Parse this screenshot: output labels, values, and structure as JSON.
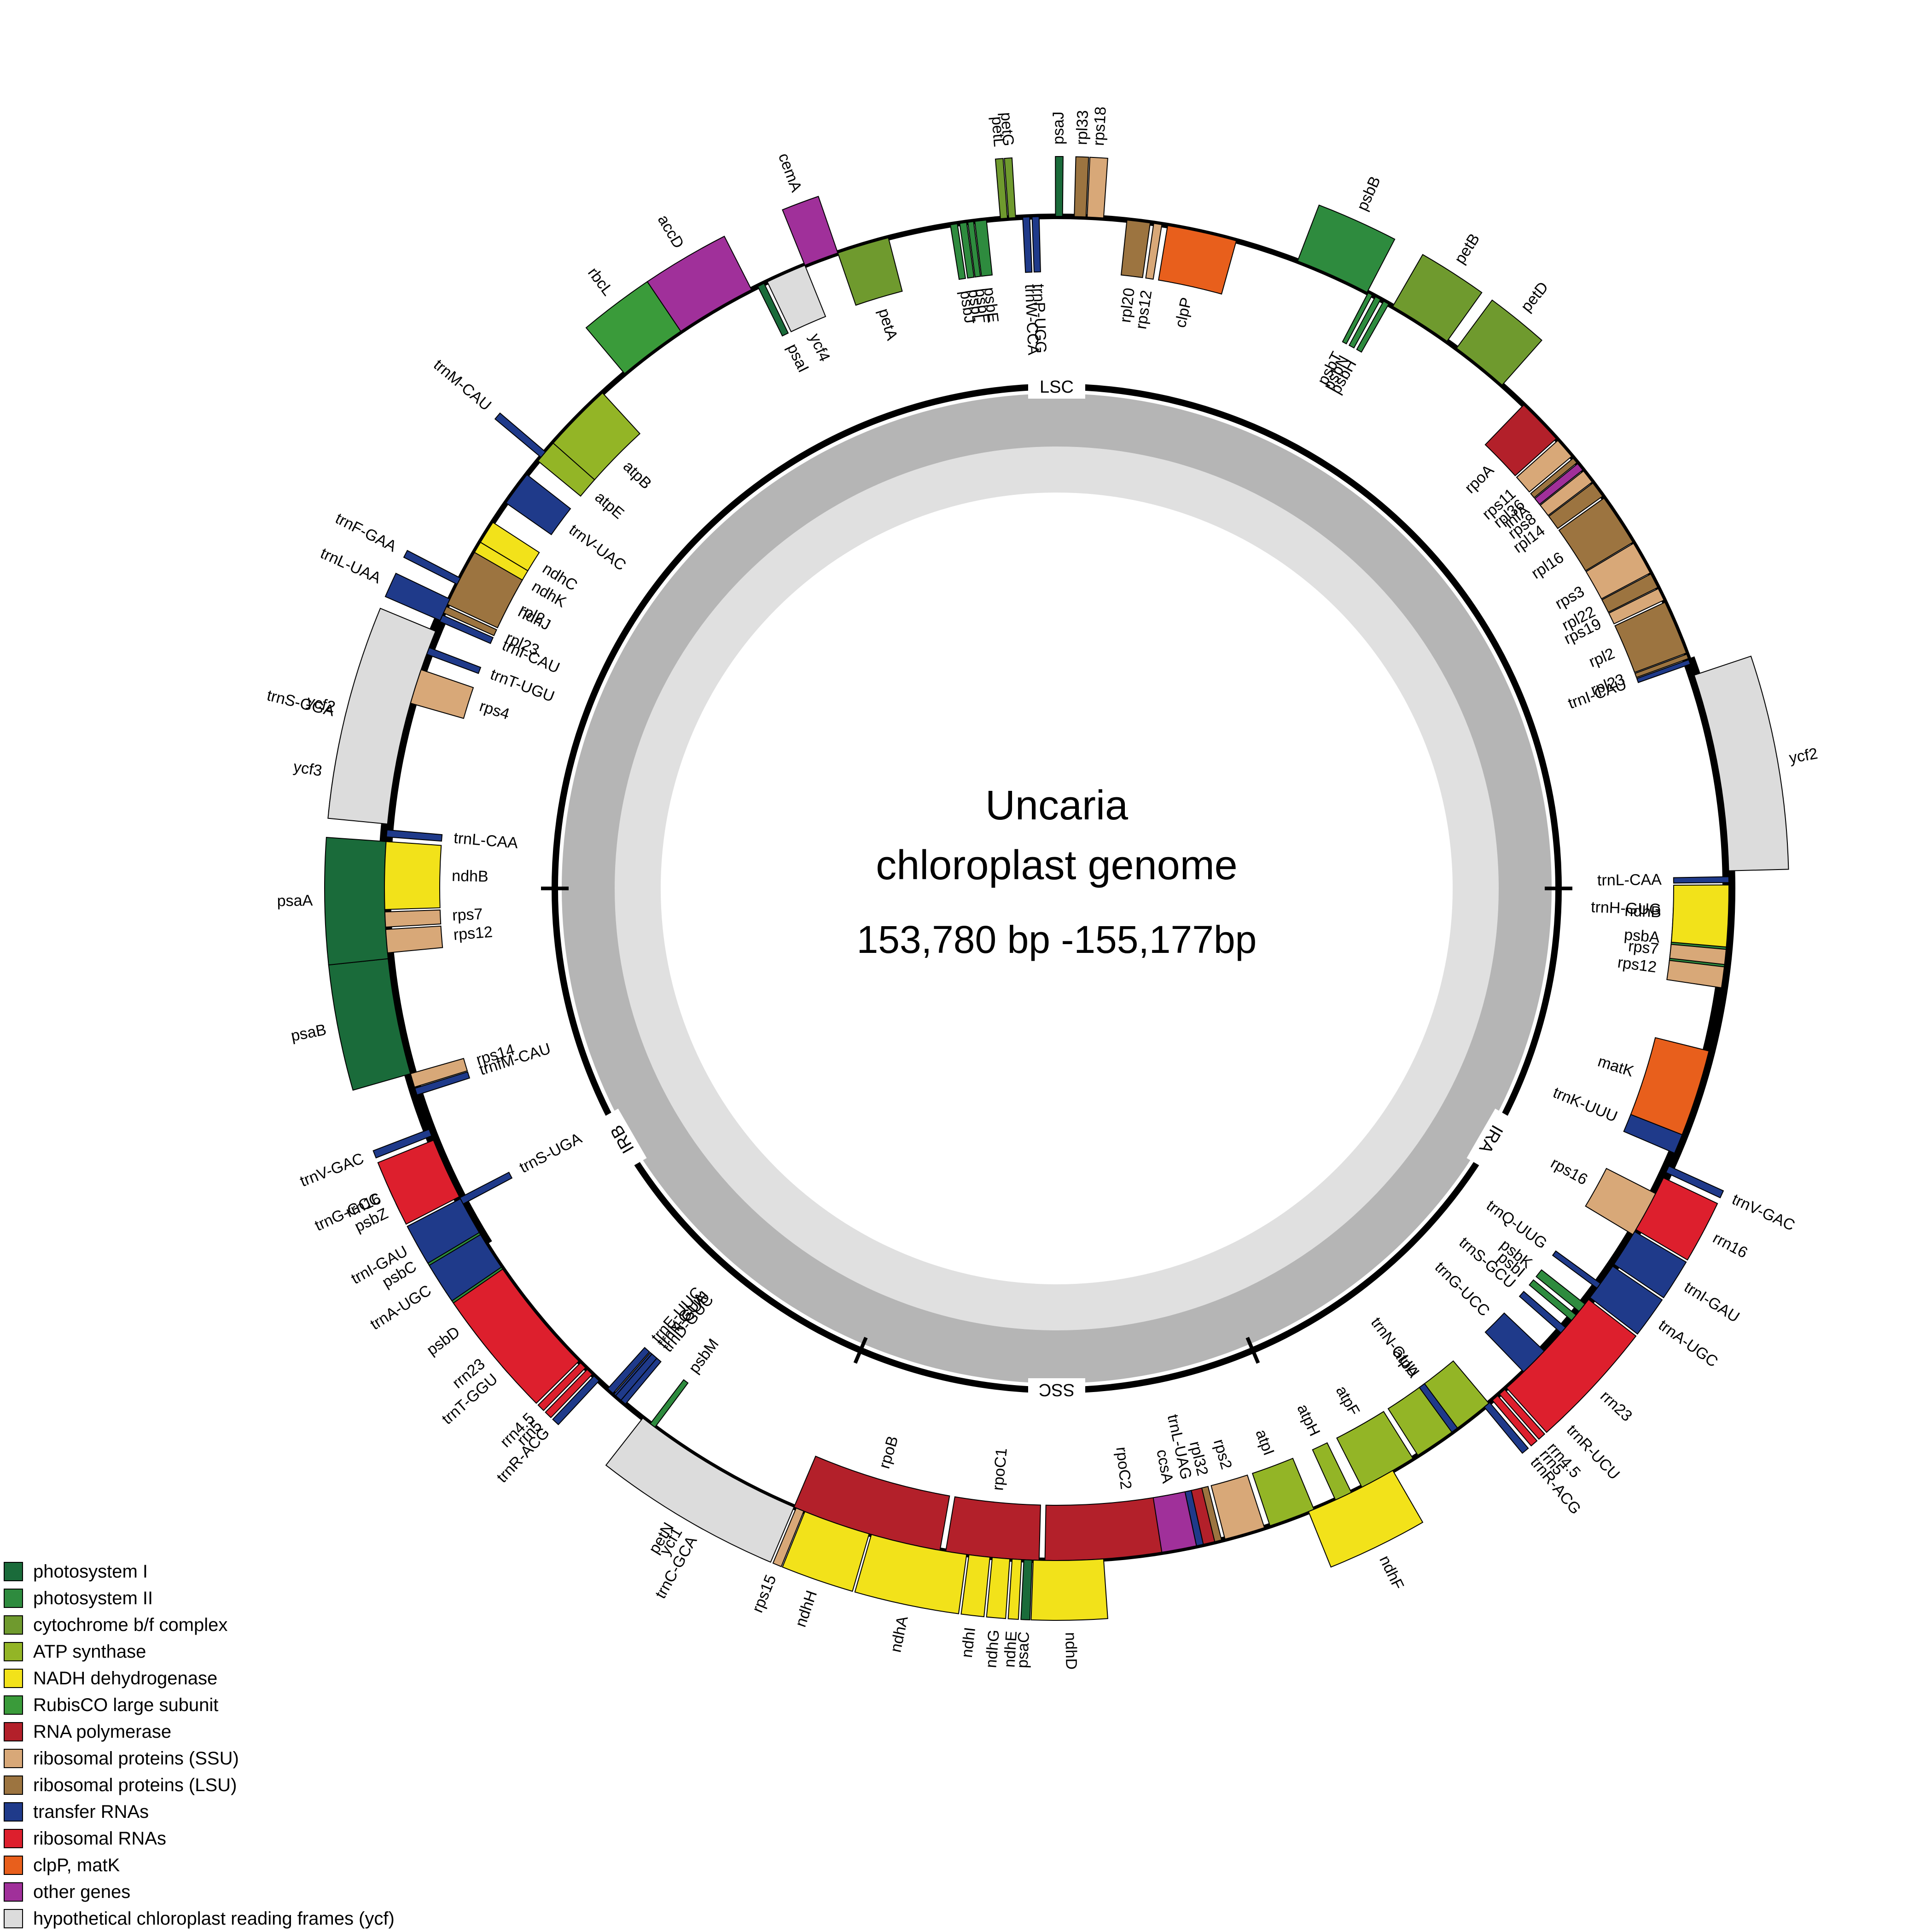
{
  "title": "Uncaria",
  "subtitle": "chloroplast genome",
  "size_label": "153,780 bp -155,177bp",
  "regions": [
    "LSC",
    "IRA",
    "SSC",
    "IRB"
  ],
  "categories": {
    "psI": {
      "label": "photosystem I",
      "color": "#1a6b3a"
    },
    "psII": {
      "label": "photosystem II",
      "color": "#2e8b3e"
    },
    "cyt": {
      "label": "cytochrome b/f complex",
      "color": "#6f9a2e"
    },
    "atp": {
      "label": "ATP synthase",
      "color": "#93b526"
    },
    "ndh": {
      "label": "NADH dehydrogenase",
      "color": "#f2e21a"
    },
    "rbc": {
      "label": "RubisCO large subunit",
      "color": "#3a9b3a"
    },
    "rpo": {
      "label": "RNA polymerase",
      "color": "#b3202a"
    },
    "ssu": {
      "label": "ribosomal proteins (SSU)",
      "color": "#d8a878"
    },
    "lsu": {
      "label": "ribosomal proteins (LSU)",
      "color": "#9c7440"
    },
    "trna": {
      "label": "transfer RNAs",
      "color": "#1f3a8a"
    },
    "rrna": {
      "label": "ribosomal RNAs",
      "color": "#dd1f2d"
    },
    "clp": {
      "label": "clpP, matK",
      "color": "#e85f1c"
    },
    "other": {
      "label": "other genes",
      "color": "#a0309a"
    },
    "ycf": {
      "label": "hypothetical chloroplast reading frames (ycf)",
      "color": "#dcdcdc"
    }
  },
  "legend_order": [
    "psI",
    "psII",
    "cyt",
    "atp",
    "ndh",
    "rbc",
    "rpo",
    "ssu",
    "lsu",
    "trna",
    "rrna",
    "clp",
    "other",
    "ycf"
  ],
  "genes": [
    {
      "name": "psbA",
      "cat": "psII",
      "a": [
        353,
        357.5
      ],
      "side": "in"
    },
    {
      "name": "trnH-GUG",
      "cat": "trna",
      "a": [
        357.6,
        358.2
      ],
      "side": "in"
    },
    {
      "name": "matK",
      "cat": "clp",
      "a": [
        338.5,
        346
      ],
      "side": "in"
    },
    {
      "name": "trnK-UUU",
      "cat": "trna",
      "a": [
        336.8,
        338.5
      ],
      "side": "in"
    },
    {
      "name": "rps16",
      "cat": "ssu",
      "a": [
        329,
        333
      ],
      "side": "in"
    },
    {
      "name": "trnQ-UUG",
      "cat": "trna",
      "a": [
        323.5,
        324
      ],
      "side": "in"
    },
    {
      "name": "psbK",
      "cat": "psII",
      "a": [
        321,
        321.8
      ],
      "side": "in"
    },
    {
      "name": "psbI",
      "cat": "psII",
      "a": [
        320,
        320.6
      ],
      "side": "in"
    },
    {
      "name": "trnS-GCU",
      "cat": "trna",
      "a": [
        318.6,
        319.2
      ],
      "side": "in"
    },
    {
      "name": "trnG-UCC",
      "cat": "trna",
      "a": [
        314,
        316.5
      ],
      "side": "in"
    },
    {
      "name": "trnR-UCU",
      "cat": "trna",
      "a": [
        313.2,
        313.8
      ],
      "side": "out"
    },
    {
      "name": "atpA",
      "cat": "atp",
      "a": [
        302.5,
        310
      ],
      "side": "in"
    },
    {
      "name": "atpF",
      "cat": "atp",
      "a": [
        297,
        302
      ],
      "side": "in"
    },
    {
      "name": "atpH",
      "cat": "atp",
      "a": [
        294.5,
        296
      ],
      "side": "in"
    },
    {
      "name": "atpI",
      "cat": "atp",
      "a": [
        288.5,
        292.5
      ],
      "side": "in"
    },
    {
      "name": "rps2",
      "cat": "ssu",
      "a": [
        284.5,
        288
      ],
      "side": "in"
    },
    {
      "name": "rpoC2",
      "cat": "rpo",
      "a": [
        269,
        284
      ],
      "side": "in"
    },
    {
      "name": "rpoC1",
      "cat": "rpo",
      "a": [
        260.5,
        268.5
      ],
      "side": "in"
    },
    {
      "name": "rpoB",
      "cat": "rpo",
      "a": [
        247,
        260
      ],
      "side": "in"
    },
    {
      "name": "trnC-GCA",
      "cat": "trna",
      "a": [
        240.5,
        241.1
      ],
      "side": "out"
    },
    {
      "name": "petN",
      "cat": "cyt",
      "a": [
        238.5,
        239
      ],
      "side": "out"
    },
    {
      "name": "psbM",
      "cat": "psII",
      "a": [
        232.8,
        233.3
      ],
      "side": "in"
    },
    {
      "name": "trnD-GUC",
      "cat": "trna",
      "a": [
        229.5,
        230.1
      ],
      "side": "in"
    },
    {
      "name": "trnY-GUA",
      "cat": "trna",
      "a": [
        228.8,
        229.4
      ],
      "side": "in"
    },
    {
      "name": "trnE-UUC",
      "cat": "trna",
      "a": [
        228.1,
        228.7
      ],
      "side": "in"
    },
    {
      "name": "trnT-GGU",
      "cat": "trna",
      "a": [
        220.8,
        221.4
      ],
      "side": "out"
    },
    {
      "name": "psbD",
      "cat": "psII",
      "a": [
        213.5,
        219.5
      ],
      "side": "out"
    },
    {
      "name": "psbC",
      "cat": "psII",
      "a": [
        207.5,
        213.5
      ],
      "side": "out"
    },
    {
      "name": "trnS-UGA",
      "cat": "trna",
      "a": [
        207.4,
        208
      ],
      "side": "in"
    },
    {
      "name": "psbZ",
      "cat": "psII",
      "a": [
        205.5,
        206.3
      ],
      "side": "out"
    },
    {
      "name": "trnG-GCC",
      "cat": "trna",
      "a": [
        204.3,
        204.9
      ],
      "side": "out"
    },
    {
      "name": "trnfM-CAU",
      "cat": "trna",
      "a": [
        197.3,
        197.9
      ],
      "side": "in"
    },
    {
      "name": "rps14",
      "cat": "ssu",
      "a": [
        196,
        197.2
      ],
      "side": "in"
    },
    {
      "name": "psaB",
      "cat": "psI",
      "a": [
        186,
        196
      ],
      "side": "out"
    },
    {
      "name": "psaA",
      "cat": "psI",
      "a": [
        176,
        186
      ],
      "side": "out"
    },
    {
      "name": "ycf3",
      "cat": "ycf",
      "a": [
        168,
        174
      ],
      "side": "out"
    },
    {
      "name": "trnS-GGA",
      "cat": "trna",
      "a": [
        166,
        166.6
      ],
      "side": "out"
    },
    {
      "name": "rps4",
      "cat": "ssu",
      "a": [
        161,
        164
      ],
      "side": "in"
    },
    {
      "name": "trnT-UGU",
      "cat": "trna",
      "a": [
        159,
        159.6
      ],
      "side": "in"
    },
    {
      "name": "trnL-UAA",
      "cat": "trna",
      "a": [
        154.5,
        156.5
      ],
      "side": "out"
    },
    {
      "name": "trnF-GAA",
      "cat": "trna",
      "a": [
        152.5,
        153.1
      ],
      "side": "out"
    },
    {
      "name": "ndhJ",
      "cat": "ndh",
      "a": [
        151,
        154.5
      ],
      "side": "in"
    },
    {
      "name": "ndhK",
      "cat": "ndh",
      "a": [
        149,
        151
      ],
      "side": "in"
    },
    {
      "name": "ndhC",
      "cat": "ndh",
      "a": [
        147,
        149
      ],
      "side": "in"
    },
    {
      "name": "trnV-UAC",
      "cat": "trna",
      "a": [
        142,
        145
      ],
      "side": "in"
    },
    {
      "name": "trnM-CAU",
      "cat": "trna",
      "a": [
        139.5,
        140.1
      ],
      "side": "out"
    },
    {
      "name": "atpE",
      "cat": "atp",
      "a": [
        138.5,
        140.5
      ],
      "side": "in"
    },
    {
      "name": "atpB",
      "cat": "atp",
      "a": [
        132.5,
        138.5
      ],
      "side": "in"
    },
    {
      "name": "rbcL",
      "cat": "rbc",
      "a": [
        124,
        130
      ],
      "side": "out"
    },
    {
      "name": "accD",
      "cat": "other",
      "a": [
        117,
        124
      ],
      "side": "out"
    },
    {
      "name": "psaI",
      "cat": "psI",
      "a": [
        115.8,
        116.4
      ],
      "side": "in"
    },
    {
      "name": "ycf4",
      "cat": "ycf",
      "a": [
        112,
        115.5
      ],
      "side": "in"
    },
    {
      "name": "cemA",
      "cat": "other",
      "a": [
        109,
        112
      ],
      "side": "out"
    },
    {
      "name": "petA",
      "cat": "cyt",
      "a": [
        104.5,
        109
      ],
      "side": "in"
    },
    {
      "name": "psbJ",
      "cat": "psII",
      "a": [
        98.5,
        99.1
      ],
      "side": "in"
    },
    {
      "name": "psbL",
      "cat": "psII",
      "a": [
        97.7,
        98.3
      ],
      "side": "in"
    },
    {
      "name": "psbF",
      "cat": "psII",
      "a": [
        97.1,
        97.6
      ],
      "side": "in"
    },
    {
      "name": "psbE",
      "cat": "psII",
      "a": [
        96,
        97
      ],
      "side": "in"
    },
    {
      "name": "petL",
      "cat": "cyt",
      "a": [
        94.2,
        94.8
      ],
      "side": "out"
    },
    {
      "name": "petG",
      "cat": "cyt",
      "a": [
        93.5,
        94.1
      ],
      "side": "out"
    },
    {
      "name": "trnW-CCA",
      "cat": "trna",
      "a": [
        92.3,
        92.9
      ],
      "side": "in"
    },
    {
      "name": "trnP-UGG",
      "cat": "trna",
      "a": [
        91.5,
        92.1
      ],
      "side": "in"
    },
    {
      "name": "psaJ",
      "cat": "psI",
      "a": [
        89.5,
        90.1
      ],
      "side": "out"
    },
    {
      "name": "rpl33",
      "cat": "lsu",
      "a": [
        87.5,
        88.5
      ],
      "side": "out"
    },
    {
      "name": "rps18",
      "cat": "ssu",
      "a": [
        86,
        87.4
      ],
      "side": "out"
    },
    {
      "name": "rpl20",
      "cat": "lsu",
      "a": [
        82,
        84
      ],
      "side": "in"
    },
    {
      "name": "rps12",
      "cat": "ssu",
      "a": [
        81,
        81.7
      ],
      "side": "in"
    },
    {
      "name": "clpP",
      "cat": "clp",
      "a": [
        74.5,
        80.5
      ],
      "side": "in"
    },
    {
      "name": "psbB",
      "cat": "psII",
      "a": [
        62.5,
        69
      ],
      "side": "out"
    },
    {
      "name": "psbT",
      "cat": "psII",
      "a": [
        62,
        62.4
      ],
      "side": "in"
    },
    {
      "name": "psbN",
      "cat": "psII",
      "a": [
        61.2,
        61.7
      ],
      "side": "in"
    },
    {
      "name": "psbH",
      "cat": "psII",
      "a": [
        60.4,
        60.9
      ],
      "side": "in"
    },
    {
      "name": "petB",
      "cat": "cyt",
      "a": [
        54.5,
        60
      ],
      "side": "out"
    },
    {
      "name": "petD",
      "cat": "cyt",
      "a": [
        48.5,
        53.5
      ],
      "side": "out"
    },
    {
      "name": "rpoA",
      "cat": "rpo",
      "a": [
        42,
        46
      ],
      "side": "in"
    },
    {
      "name": "rps11",
      "cat": "ssu",
      "a": [
        40,
        41.8
      ],
      "side": "in"
    },
    {
      "name": "rpl36",
      "cat": "lsu",
      "a": [
        39.3,
        39.8
      ],
      "side": "in"
    },
    {
      "name": "infA",
      "cat": "other",
      "a": [
        38.5,
        39.2
      ],
      "side": "in"
    },
    {
      "name": "rps8",
      "cat": "ssu",
      "a": [
        37.2,
        38.4
      ],
      "side": "in"
    },
    {
      "name": "rpl14",
      "cat": "lsu",
      "a": [
        35.7,
        37.1
      ],
      "side": "in"
    },
    {
      "name": "rpl16",
      "cat": "lsu",
      "a": [
        31,
        35.5
      ],
      "side": "in"
    },
    {
      "name": "rps3",
      "cat": "ssu",
      "a": [
        28,
        30.9
      ],
      "side": "in"
    },
    {
      "name": "rpl22",
      "cat": "lsu",
      "a": [
        26.6,
        27.9
      ],
      "side": "in"
    },
    {
      "name": "rps19",
      "cat": "ssu",
      "a": [
        25.4,
        26.5
      ],
      "side": "in"
    },
    {
      "name": "rpl2",
      "cat": "lsu",
      "a": [
        20.5,
        25.2
      ],
      "side": "in"
    },
    {
      "name": "rpl23",
      "cat": "lsu",
      "a": [
        20,
        20.4
      ],
      "side": "in"
    },
    {
      "name": "trnI-CAU",
      "cat": "trna",
      "a": [
        19.5,
        19.9
      ],
      "side": "in"
    },
    {
      "name": "ycf2",
      "cat": "ycf",
      "a": [
        1.5,
        18.5
      ],
      "side": "out"
    },
    {
      "name": "trnL-CAA",
      "cat": "trna",
      "a": [
        0.5,
        1
      ],
      "side": "in"
    },
    {
      "name": "ndhB",
      "cat": "ndh",
      "a": [
        355,
        0.3
      ],
      "side": "in"
    },
    {
      "name": "rps7",
      "cat": "ssu",
      "a": [
        353.5,
        354.8
      ],
      "side": "in"
    },
    {
      "name": "rps12",
      "cat": "ssu",
      "a": [
        351.5,
        353.3
      ],
      "side": "in"
    },
    {
      "name": "trnV-GAC",
      "cat": "trna",
      "a": [
        335,
        335.6
      ],
      "side": "out"
    },
    {
      "name": "rrn16",
      "cat": "rrna",
      "a": [
        329.5,
        334.5
      ],
      "side": "out"
    },
    {
      "name": "trnI-GAU",
      "cat": "trna",
      "a": [
        326,
        329.3
      ],
      "side": "out"
    },
    {
      "name": "trnA-UGC",
      "cat": "trna",
      "a": [
        322.5,
        325.8
      ],
      "side": "out"
    },
    {
      "name": "rrn23",
      "cat": "rrna",
      "a": [
        312,
        322.3
      ],
      "side": "out"
    },
    {
      "name": "rrn4.5",
      "cat": "rrna",
      "a": [
        311.2,
        311.8
      ],
      "side": "out"
    },
    {
      "name": "rrn5",
      "cat": "rrna",
      "a": [
        310.4,
        311
      ],
      "side": "out"
    },
    {
      "name": "trnR-ACG",
      "cat": "trna",
      "a": [
        309.5,
        310.1
      ],
      "side": "out"
    },
    {
      "name": "trnN-GUU",
      "cat": "trna",
      "a": [
        306,
        306.6
      ],
      "side": "in"
    },
    {
      "name": "ndhF",
      "cat": "ndh",
      "a": [
        292,
        300
      ],
      "side": "out"
    },
    {
      "name": "rpl32",
      "cat": "lsu",
      "a": [
        283.6,
        284.2
      ],
      "side": "in"
    },
    {
      "name": "trnL-UAG",
      "cat": "trna",
      "a": [
        282,
        282.6
      ],
      "side": "in"
    },
    {
      "name": "ccsA",
      "cat": "other",
      "a": [
        279,
        282
      ],
      "side": "in"
    },
    {
      "name": "ndhD",
      "cat": "ndh",
      "a": [
        268,
        274
      ],
      "side": "out"
    },
    {
      "name": "psaC",
      "cat": "psI",
      "a": [
        267.2,
        267.9
      ],
      "side": "out"
    },
    {
      "name": "ndhE",
      "cat": "ndh",
      "a": [
        266.2,
        267
      ],
      "side": "out"
    },
    {
      "name": "ndhG",
      "cat": "ndh",
      "a": [
        264.5,
        266
      ],
      "side": "out"
    },
    {
      "name": "ndhI",
      "cat": "ndh",
      "a": [
        262.5,
        264.3
      ],
      "side": "out"
    },
    {
      "name": "ndhA",
      "cat": "ndh",
      "a": [
        254,
        262.3
      ],
      "side": "out"
    },
    {
      "name": "ndhH",
      "cat": "ndh",
      "a": [
        248,
        253.8
      ],
      "side": "out"
    },
    {
      "name": "rps15",
      "cat": "ssu",
      "a": [
        247.2,
        247.9
      ],
      "side": "out"
    },
    {
      "name": "ycf1",
      "cat": "ycf",
      "a": [
        232,
        247
      ],
      "side": "out"
    },
    {
      "name": "trnN-GUU",
      "cat": "trna",
      "a": [
        229,
        229.6
      ],
      "side": "in"
    },
    {
      "name": "trnR-ACG",
      "cat": "trna",
      "a": [
        226.5,
        227.1
      ],
      "side": "out"
    },
    {
      "name": "rrn5",
      "cat": "rrna",
      "a": [
        225.7,
        226.3
      ],
      "side": "out"
    },
    {
      "name": "rrn4.5",
      "cat": "rrna",
      "a": [
        224.9,
        225.5
      ],
      "side": "out"
    },
    {
      "name": "rrn23",
      "cat": "rrna",
      "a": [
        214.5,
        224.7
      ],
      "side": "out"
    },
    {
      "name": "trnA-UGC",
      "cat": "trna",
      "a": [
        211,
        214.3
      ],
      "side": "out"
    },
    {
      "name": "trnI-GAU",
      "cat": "trna",
      "a": [
        207.5,
        210.8
      ],
      "side": "out"
    },
    {
      "name": "rrn16",
      "cat": "rrna",
      "a": [
        202,
        207.3
      ],
      "side": "out"
    },
    {
      "name": "trnV-GAC",
      "cat": "trna",
      "a": [
        201,
        201.6
      ],
      "side": "out"
    },
    {
      "name": "rps12",
      "cat": "ssu",
      "a": [
        183.5,
        185.5
      ],
      "side": "in"
    },
    {
      "name": "rps7",
      "cat": "ssu",
      "a": [
        182,
        183.3
      ],
      "side": "in"
    },
    {
      "name": "ndhB",
      "cat": "ndh",
      "a": [
        176,
        181.8
      ],
      "side": "in"
    },
    {
      "name": "trnL-CAA",
      "cat": "trna",
      "a": [
        175,
        175.6
      ],
      "side": "in"
    },
    {
      "name": "ycf2",
      "cat": "ycf",
      "a": [
        157.5,
        174.5
      ],
      "side": "out"
    },
    {
      "name": "trnI-CAU",
      "cat": "trna",
      "a": [
        156,
        156.6
      ],
      "side": "in"
    },
    {
      "name": "rpl23",
      "cat": "lsu",
      "a": [
        155.2,
        155.8
      ],
      "side": "in"
    },
    {
      "name": "rpl2",
      "cat": "lsu",
      "a": [
        150,
        155
      ],
      "side": "in"
    }
  ]
}
